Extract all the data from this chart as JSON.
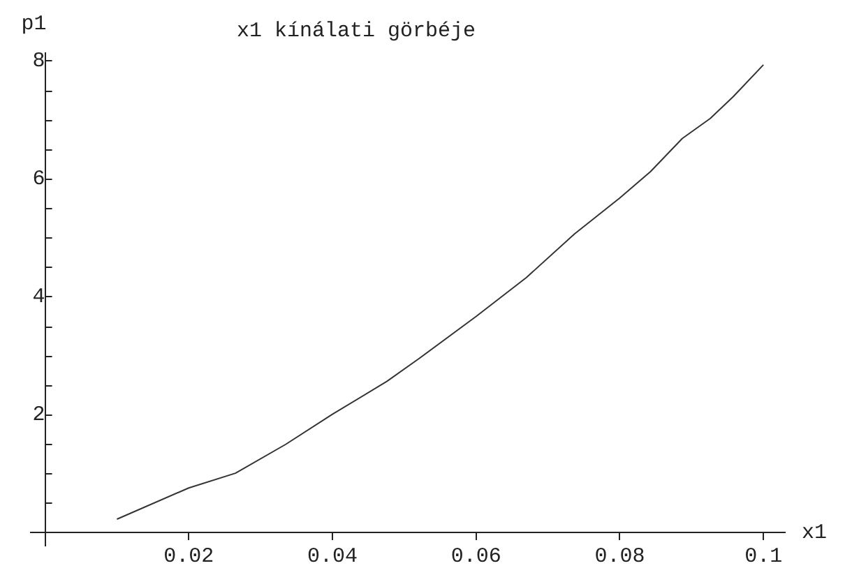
{
  "chart_data": {
    "type": "line",
    "title": "x1 kínálati görbéje",
    "xlabel": "x1",
    "ylabel": "p1",
    "x": [
      0.01,
      0.02,
      0.0265,
      0.0335,
      0.04,
      0.0476,
      0.052,
      0.06,
      0.067,
      0.0737,
      0.08,
      0.0843,
      0.0887,
      0.0926,
      0.0958,
      0.1
    ],
    "series": [
      {
        "color": "#333333",
        "values": [
          0.22,
          0.75,
          1.0,
          1.49,
          2.0,
          2.56,
          2.94,
          3.66,
          4.32,
          5.06,
          5.67,
          6.12,
          6.68,
          7.02,
          7.39,
          7.93
        ]
      }
    ],
    "xlim": [
      -0.002,
      0.103
    ],
    "ylim": [
      -0.23,
      8.13
    ],
    "xticks": [
      0.02,
      0.04,
      0.06,
      0.08,
      {
        "value": 0.1,
        "label": "0.1"
      }
    ],
    "yticks": [
      {
        "value": 0.5,
        "label": null
      },
      {
        "value": 1,
        "label": null
      },
      {
        "value": 1.5,
        "label": null
      },
      2,
      {
        "value": 2.5,
        "label": null
      },
      {
        "value": 3,
        "label": null
      },
      {
        "value": 3.5,
        "label": null
      },
      4,
      {
        "value": 4.5,
        "label": null
      },
      {
        "value": 5,
        "label": null
      },
      {
        "value": 5.5,
        "label": null
      },
      6,
      {
        "value": 6.5,
        "label": null
      },
      {
        "value": 7,
        "label": null
      },
      {
        "value": 7.5,
        "label": null
      },
      8
    ],
    "grid": false,
    "legend": false,
    "marker": "none",
    "line_style": "solid"
  }
}
